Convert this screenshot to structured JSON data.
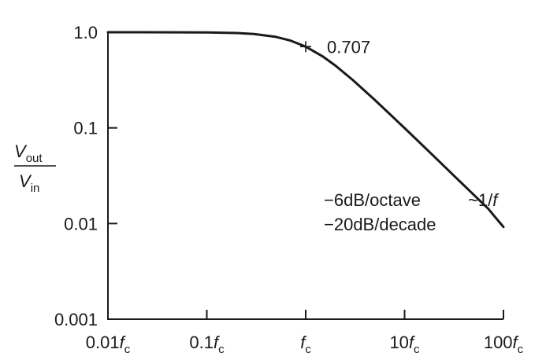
{
  "chart_data": {
    "type": "line",
    "title": "",
    "xscale": "log",
    "yscale": "log",
    "xlim": [
      0.01,
      100
    ],
    "ylim": [
      0.001,
      1.0
    ],
    "grid": false,
    "xticks": [
      {
        "value": 0.01,
        "main": "0.01",
        "var": "f",
        "sub": "c"
      },
      {
        "value": 0.1,
        "main": "0.1",
        "var": "f",
        "sub": "c"
      },
      {
        "value": 1,
        "main": "",
        "var": "f",
        "sub": "c"
      },
      {
        "value": 10,
        "main": "10",
        "var": "f",
        "sub": "c"
      },
      {
        "value": 100,
        "main": "100",
        "var": "f",
        "sub": "c"
      }
    ],
    "yticks": [
      {
        "value": 1.0,
        "label": "1.0"
      },
      {
        "value": 0.1,
        "label": "0.1"
      },
      {
        "value": 0.01,
        "label": "0.01"
      },
      {
        "value": 0.001,
        "label": "0.001"
      }
    ],
    "ylabel": {
      "numerator": {
        "var": "V",
        "sub": "out"
      },
      "denominator": {
        "var": "V",
        "sub": "in"
      }
    },
    "series": [
      {
        "x": [
          0.01,
          0.02,
          0.05,
          0.1,
          0.2,
          0.3,
          0.5,
          0.7,
          1.0,
          1.5,
          2,
          3,
          5,
          7,
          10,
          20,
          30,
          50,
          70,
          100
        ],
        "y": [
          1.0,
          0.9998,
          0.9988,
          0.995,
          0.981,
          0.958,
          0.894,
          0.819,
          0.707,
          0.555,
          0.447,
          0.316,
          0.196,
          0.141,
          0.0995,
          0.05,
          0.0333,
          0.02,
          0.0143,
          0.0092
        ]
      }
    ],
    "annotations": [
      {
        "id": "marker",
        "x": 1.0,
        "y": 0.707,
        "label": "0.707"
      },
      {
        "id": "slope1",
        "text": "−6dB/octave"
      },
      {
        "id": "slope2",
        "text": "−20dB/decade"
      },
      {
        "id": "asym",
        "prefix": "~1/",
        "var": "f"
      }
    ]
  }
}
